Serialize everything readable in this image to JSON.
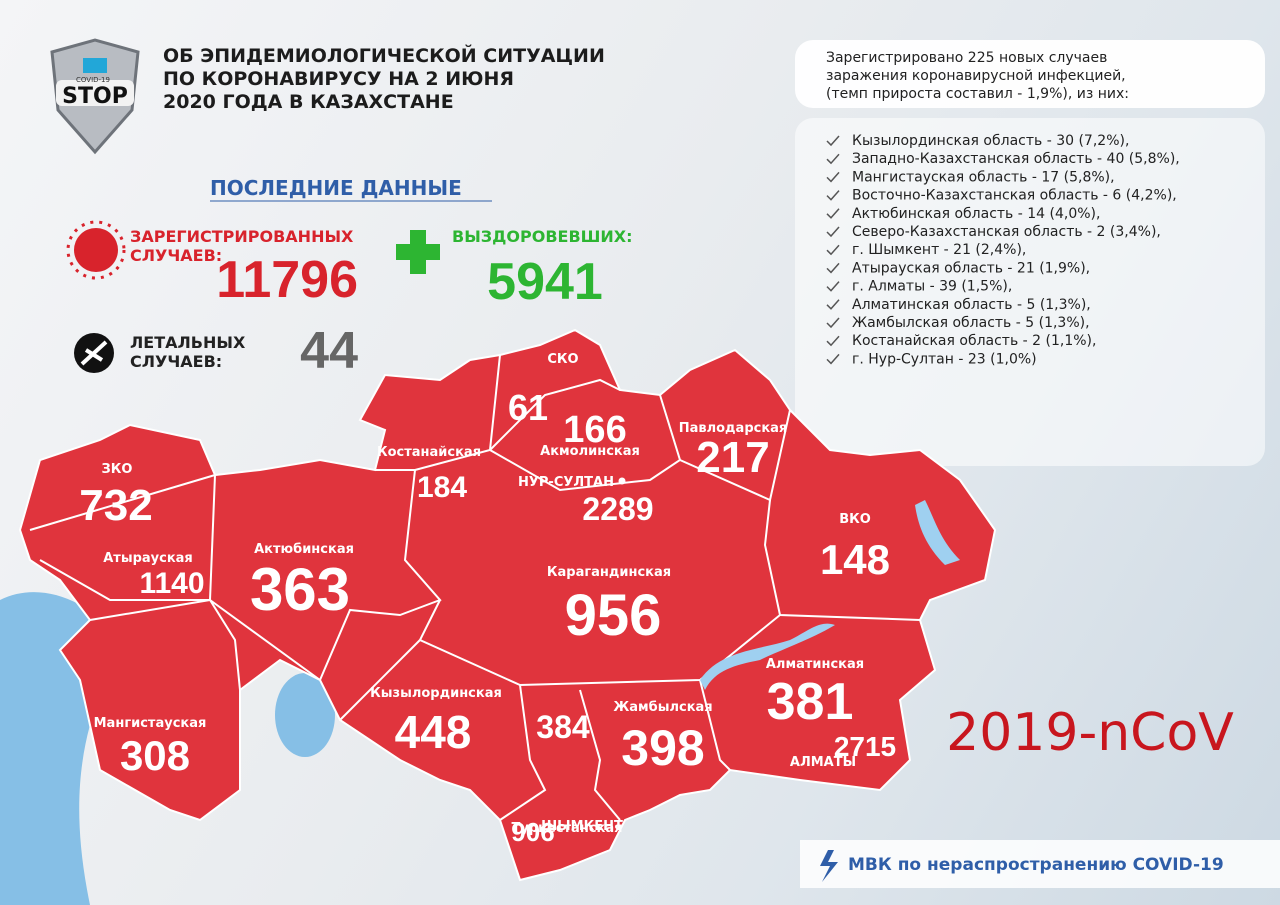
{
  "header": {
    "logo": [
      "COVID-19",
      "STOP"
    ],
    "title": [
      "ОБ ЭПИДЕМИОЛОГИЧЕСКОЙ СИТУАЦИИ",
      "ПО КОРОНАВИРУСУ НА 2 ИЮНЯ",
      "2020 ГОДА В КАЗАХСТАНЕ"
    ]
  },
  "summary": {
    "heading": "ПОСЛЕДНИЕ ДАННЫЕ",
    "registered": {
      "label": [
        "ЗАРЕГИСТРИРОВАННЫХ",
        "СЛУЧАЕВ:"
      ],
      "value": 11796
    },
    "recovered": {
      "label": [
        "ВЫЗДОРОВЕВШИХ:"
      ],
      "value": 5941
    },
    "deaths": {
      "label": [
        "ЛЕТАЛЬНЫХ",
        "СЛУЧАЕВ:"
      ],
      "value": 44
    }
  },
  "new_cases": {
    "intro": [
      "Зарегистрировано 225 новых случаев",
      "заражения коронавирусной инфекцией,",
      "(темп прироста составил - 1,9%), из них:"
    ],
    "items": [
      "Кызылординская область - 30 (7,2%),",
      "Западно-Казахстанская область - 40 (5,8%),",
      "Мангистауская область - 17 (5,8%),",
      "Восточно-Казахстанская область - 6 (4,2%),",
      "Актюбинская область - 14 (4,0%),",
      "Северо-Казахстанская область - 2 (3,4%),",
      "г. Шымкент - 21 (2,4%),",
      "Атырауская область - 21 (1,9%),",
      "г. Алматы - 39 (1,5%),",
      "Алматинская область - 5 (1,3%),",
      "Жамбылская область - 5 (1,3%),",
      "Костанайская область - 2 (1,1%),",
      "г. Нур-Султан - 23 (1,0%)"
    ]
  },
  "map": {
    "labels": [
      "ЗКО",
      "Атырауская",
      "Актюбинская",
      "Мангистауская",
      "Костанайская",
      "СКО",
      "Акмолинская",
      "НУР-СУЛТАН",
      "Павлодарская",
      "ВКО",
      "Карагандинская",
      "Алматинская",
      "АЛМАТЫ",
      "Кызылординская",
      "Жамбылская",
      "Туркестанская",
      "ШЫМКЕНТ"
    ],
    "values": [
      732,
      1140,
      363,
      308,
      184,
      61,
      166,
      2289,
      217,
      148,
      956,
      381,
      2715,
      448,
      398,
      384,
      906
    ]
  },
  "footer": {
    "virus": "2019-nCoV",
    "org": "МВК по нераспространению COVID-19"
  }
}
